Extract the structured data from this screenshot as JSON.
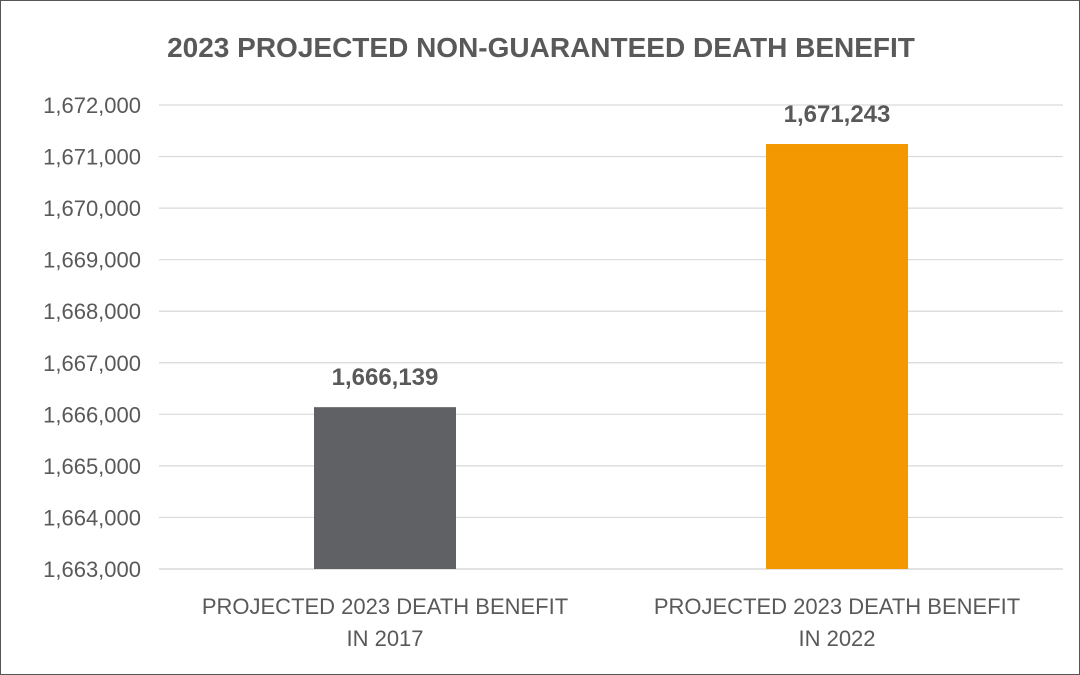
{
  "chart_data": {
    "type": "bar",
    "title": "2023 PROJECTED NON-GUARANTEED DEATH BENEFIT",
    "categories": [
      [
        "PROJECTED 2023 DEATH BENEFIT",
        "IN 2017"
      ],
      [
        "PROJECTED 2023 DEATH BENEFIT",
        "IN 2022"
      ]
    ],
    "values": [
      1666139,
      1671243
    ],
    "data_labels": [
      "1,666,139",
      "1,671,243"
    ],
    "bar_colors": [
      "#606165",
      "#f39800"
    ],
    "ylim": [
      1663000,
      1672000
    ],
    "yticks": [
      1663000,
      1664000,
      1665000,
      1666000,
      1667000,
      1668000,
      1669000,
      1670000,
      1671000,
      1672000
    ],
    "ytick_labels": [
      "1,663,000",
      "1,664,000",
      "1,665,000",
      "1,666,000",
      "1,667,000",
      "1,668,000",
      "1,669,000",
      "1,670,000",
      "1,671,000",
      "1,672,000"
    ],
    "grid": true,
    "legend": "none",
    "gridline_color": "#d9d9d9",
    "text_color": "#595959"
  }
}
